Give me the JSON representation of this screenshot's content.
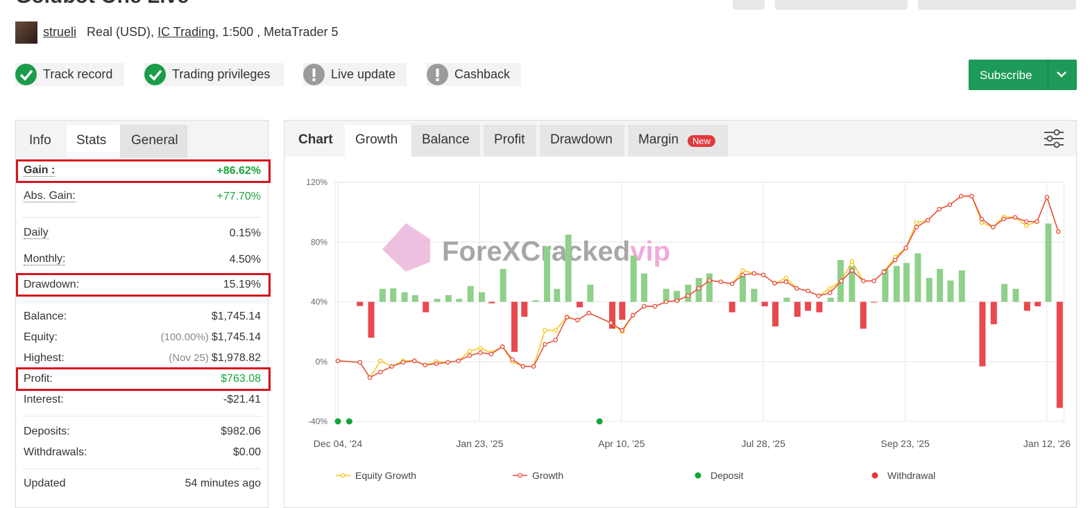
{
  "header": {
    "title": "Goldbot One Live",
    "user": "strueli",
    "account": "Real (USD),",
    "broker": "IC Trading",
    "details": ", 1:500 , MetaTrader 5"
  },
  "badges": [
    {
      "label": "Track record",
      "ok": true
    },
    {
      "label": "Trading privileges",
      "ok": true
    },
    {
      "label": "Live update",
      "ok": false
    },
    {
      "label": "Cashback",
      "ok": false
    }
  ],
  "subscribe": "Subscribe",
  "left_tabs": [
    "Info",
    "Stats",
    "General"
  ],
  "stats": [
    {
      "label": "Gain :",
      "value": "+86.62%",
      "positive": true,
      "highlight": true,
      "underline": true,
      "bold": true
    },
    {
      "label": "Abs. Gain:",
      "value": "+77.70%",
      "positive": true,
      "underline": true
    },
    {
      "label": "Daily",
      "value": "0.15%",
      "underline": true
    },
    {
      "label": "Monthly:",
      "value": "4.50%",
      "underline": true
    },
    {
      "label": "Drawdown:",
      "value": "15.19%",
      "highlight": true
    },
    {
      "label": "Balance:",
      "value": "$1,745.14"
    },
    {
      "label": "Equity:",
      "extra": "(100.00%)",
      "value": "$1,745.14"
    },
    {
      "label": "Highest:",
      "extra": "(Nov 25)",
      "value": "$1,978.82"
    },
    {
      "label": "Profit:",
      "value": "$763.08",
      "positive": true,
      "highlight": true
    },
    {
      "label": "Interest:",
      "value": "-$21.41"
    },
    {
      "label": "Deposits:",
      "value": "$982.06"
    },
    {
      "label": "Withdrawals:",
      "value": "$0.00"
    },
    {
      "label": "Updated",
      "value": "54 minutes ago"
    }
  ],
  "chart_tabs": [
    "Chart",
    "Growth",
    "Balance",
    "Profit",
    "Drawdown",
    "Margin"
  ],
  "new_badge": "New",
  "watermark": {
    "main": "ForeXCracked",
    "accent": "vip"
  },
  "chart_data": {
    "type": "line",
    "xlim": [
      0,
      102
    ],
    "xticks": [
      {
        "value": 0,
        "label": "Dec 04, '24"
      },
      {
        "value": 20,
        "label": "Jan 23, '25"
      },
      {
        "value": 40,
        "label": "Apr 10, '25"
      },
      {
        "value": 60,
        "label": "Jul 28, '25"
      },
      {
        "value": 80,
        "label": "Sep 23, '25"
      },
      {
        "value": 100,
        "label": "Jan 12, '26"
      }
    ],
    "ylim": [
      -40,
      120
    ],
    "yticks": [
      {
        "value": -40,
        "label": "-40%"
      },
      {
        "value": 0,
        "label": "0%"
      },
      {
        "value": 40,
        "label": "40%"
      },
      {
        "value": 80,
        "label": "80%"
      },
      {
        "value": 120,
        "label": "120%"
      }
    ],
    "grid": true,
    "x": [
      0,
      3.1,
      4.5,
      6.0,
      7.6,
      9.2,
      10.8,
      12.3,
      13.9,
      15.5,
      17.0,
      18.6,
      20.1,
      21.6,
      23.2,
      24.6,
      26.1,
      27.6,
      29.2,
      30.7,
      32.3,
      33.8,
      35.4,
      38.5,
      40.1,
      41.6,
      43.2,
      44.7,
      46.3,
      47.8,
      49.4,
      50.9,
      52.4,
      54.0,
      55.6,
      57.1,
      58.7,
      60,
      61.6,
      63.2,
      64.7,
      66.3,
      67.8,
      69.4,
      71.0,
      72.5,
      74.1,
      75.6,
      77.0,
      78.6,
      80.1,
      81.6,
      83.2,
      84.8,
      86.3,
      87.9,
      89.4,
      90.8,
      92.4,
      93.9,
      95.5,
      97.1,
      98.6,
      100,
      101.6
    ],
    "series": [
      {
        "name": "Equity Growth",
        "color": "#f5c518",
        "values": [
          0.5,
          -0.5,
          -10.7,
          0.5,
          -3.2,
          0.5,
          0.5,
          -2.3,
          0,
          -0.5,
          0.5,
          7,
          9,
          6,
          10,
          0,
          -3.2,
          -3.2,
          21,
          21,
          30,
          27.8,
          32.5,
          26,
          20,
          31,
          37,
          37,
          40,
          40.8,
          44,
          49,
          54.3,
          53.4,
          52,
          61,
          59,
          58,
          52.4,
          56,
          49,
          47.3,
          44,
          49,
          54,
          67,
          54,
          54,
          60,
          70,
          76,
          93,
          94.6,
          102,
          105,
          110.7,
          110.7,
          93,
          90,
          97,
          96.5,
          91,
          93.7,
          110,
          87
        ]
      },
      {
        "name": "Growth",
        "color": "#e8483c",
        "values": [
          0.5,
          -0.5,
          -10.7,
          -7,
          -3.2,
          -0.5,
          0.5,
          -2.3,
          -1.4,
          -0.5,
          0.5,
          4,
          6,
          5,
          10,
          1.4,
          -3.2,
          -3.2,
          11.6,
          14.4,
          29.7,
          27.8,
          32.5,
          26,
          20.9,
          31,
          37,
          37,
          40,
          40.8,
          44,
          49,
          54.3,
          53.4,
          52,
          58,
          59,
          58,
          52.4,
          53.4,
          49,
          47.3,
          44,
          46,
          54,
          61,
          54,
          54,
          60,
          68,
          76,
          90,
          94.6,
          102,
          105,
          110.7,
          110.7,
          95.4,
          90,
          95.4,
          96.5,
          93.7,
          93.7,
          110,
          87
        ]
      }
    ],
    "bars": {
      "up_color": "#8fd08a",
      "down_color": "#e8494d",
      "x": [
        3.1,
        4.7,
        6.3,
        7.8,
        9.4,
        10.9,
        12.4,
        14.0,
        15.6,
        17.1,
        18.7,
        20.3,
        21.7,
        23.3,
        24.9,
        26.3,
        27.9,
        29.5,
        30.9,
        32.5,
        34.1,
        35.6,
        38.7,
        40.1,
        41.7,
        43.2,
        46.3,
        47.8,
        49.4,
        50.9,
        52.4,
        55.6,
        57.1,
        58.7,
        60.2,
        61.7,
        63.3,
        64.8,
        66.3,
        67.9,
        69.5,
        70.9,
        72.5,
        74.1,
        75.6,
        77.2,
        78.8,
        80.2,
        81.8,
        83.4,
        84.9,
        86.4,
        88.0,
        90.9,
        92.5,
        94.0,
        95.6,
        97.2,
        98.7,
        100.2,
        101.8
      ],
      "values": [
        37.2,
        16,
        48.7,
        49,
        46.4,
        44.5,
        33,
        42,
        44.5,
        42,
        50.6,
        46.4,
        39,
        62,
        6.5,
        30,
        41,
        77,
        48.7,
        85,
        36.3,
        51.5,
        22,
        28,
        71,
        59,
        48.7,
        47.3,
        51.5,
        56,
        59,
        33,
        57.4,
        48.7,
        37,
        23.5,
        42.8,
        30,
        34,
        33,
        42.8,
        68,
        64,
        22,
        39.5,
        62,
        64,
        66,
        72.5,
        56,
        62,
        54.3,
        61,
        -3.2,
        25,
        52,
        48.7,
        34,
        37,
        92.4,
        -31
      ]
    },
    "events": [
      {
        "name": "Deposit",
        "color": "#13a538",
        "x": [
          0,
          1.6,
          36.9
        ]
      },
      {
        "name": "Withdrawal",
        "color": "#e8353a",
        "x": []
      }
    ]
  }
}
